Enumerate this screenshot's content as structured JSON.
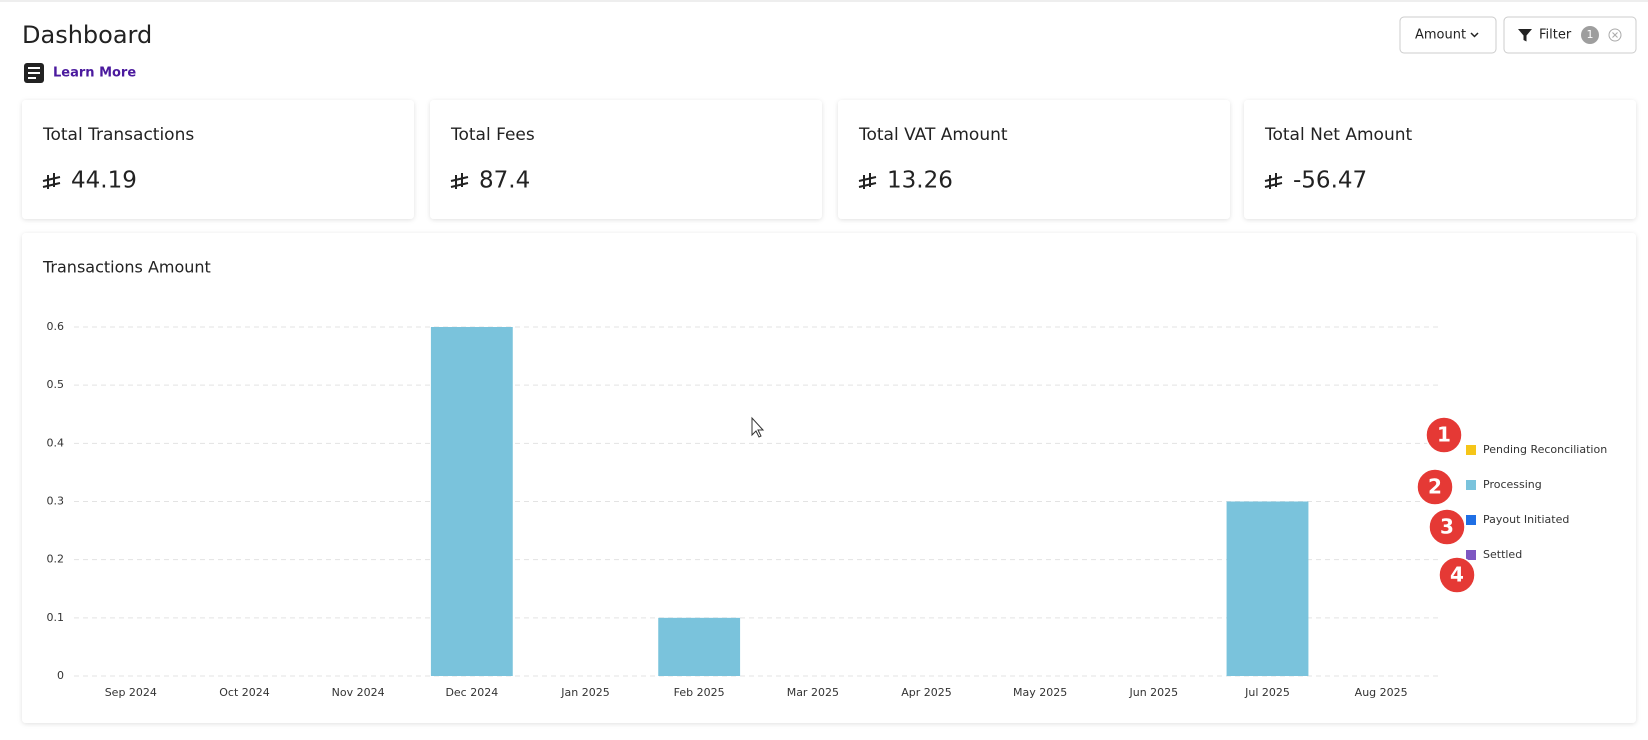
{
  "header": {
    "title": "Dashboard",
    "learn_more": "Learn More",
    "amount_button": "Amount",
    "filter_button": "Filter",
    "filter_count": 1
  },
  "cards": [
    {
      "label": "Total Transactions",
      "value": 44.19
    },
    {
      "label": "Total Fees",
      "value": 87.4
    },
    {
      "label": "Total VAT Amount",
      "value": 13.26
    },
    {
      "label": "Total Net Amount",
      "value": -56.47
    }
  ],
  "chart_data": {
    "type": "bar",
    "title": "Transactions Amount",
    "categories": [
      "Sep 2024",
      "Oct 2024",
      "Nov 2024",
      "Dec 2024",
      "Jan 2025",
      "Feb 2025",
      "Mar 2025",
      "Apr 2025",
      "May 2025",
      "Jun 2025",
      "Jul 2025",
      "Aug 2025"
    ],
    "series": [
      {
        "name": "Pending Reconciliation",
        "color": "#f5c518",
        "values": [
          0,
          0,
          0,
          0,
          0,
          0,
          0,
          0,
          0,
          0,
          0,
          0
        ]
      },
      {
        "name": "Processing",
        "color": "#7ac3dc",
        "values": [
          0,
          0,
          0,
          0.6,
          0,
          0.1,
          0,
          0,
          0,
          0,
          0.3,
          0
        ]
      },
      {
        "name": "Payout Initiated",
        "color": "#1f6fe5",
        "values": [
          0,
          0,
          0,
          0,
          0,
          0,
          0,
          0,
          0,
          0,
          0,
          0
        ]
      },
      {
        "name": "Settled",
        "color": "#7e57c2",
        "values": [
          0,
          0,
          0,
          0,
          0,
          0,
          0,
          0,
          0,
          0,
          0,
          0
        ]
      }
    ],
    "stacked": true,
    "ylim": [
      0,
      0.6
    ],
    "yticks": [
      0,
      0.1,
      0.2,
      0.3,
      0.4,
      0.5,
      0.6
    ],
    "grid": true,
    "legend": "right",
    "annotations": [
      1,
      2,
      3,
      4
    ]
  }
}
